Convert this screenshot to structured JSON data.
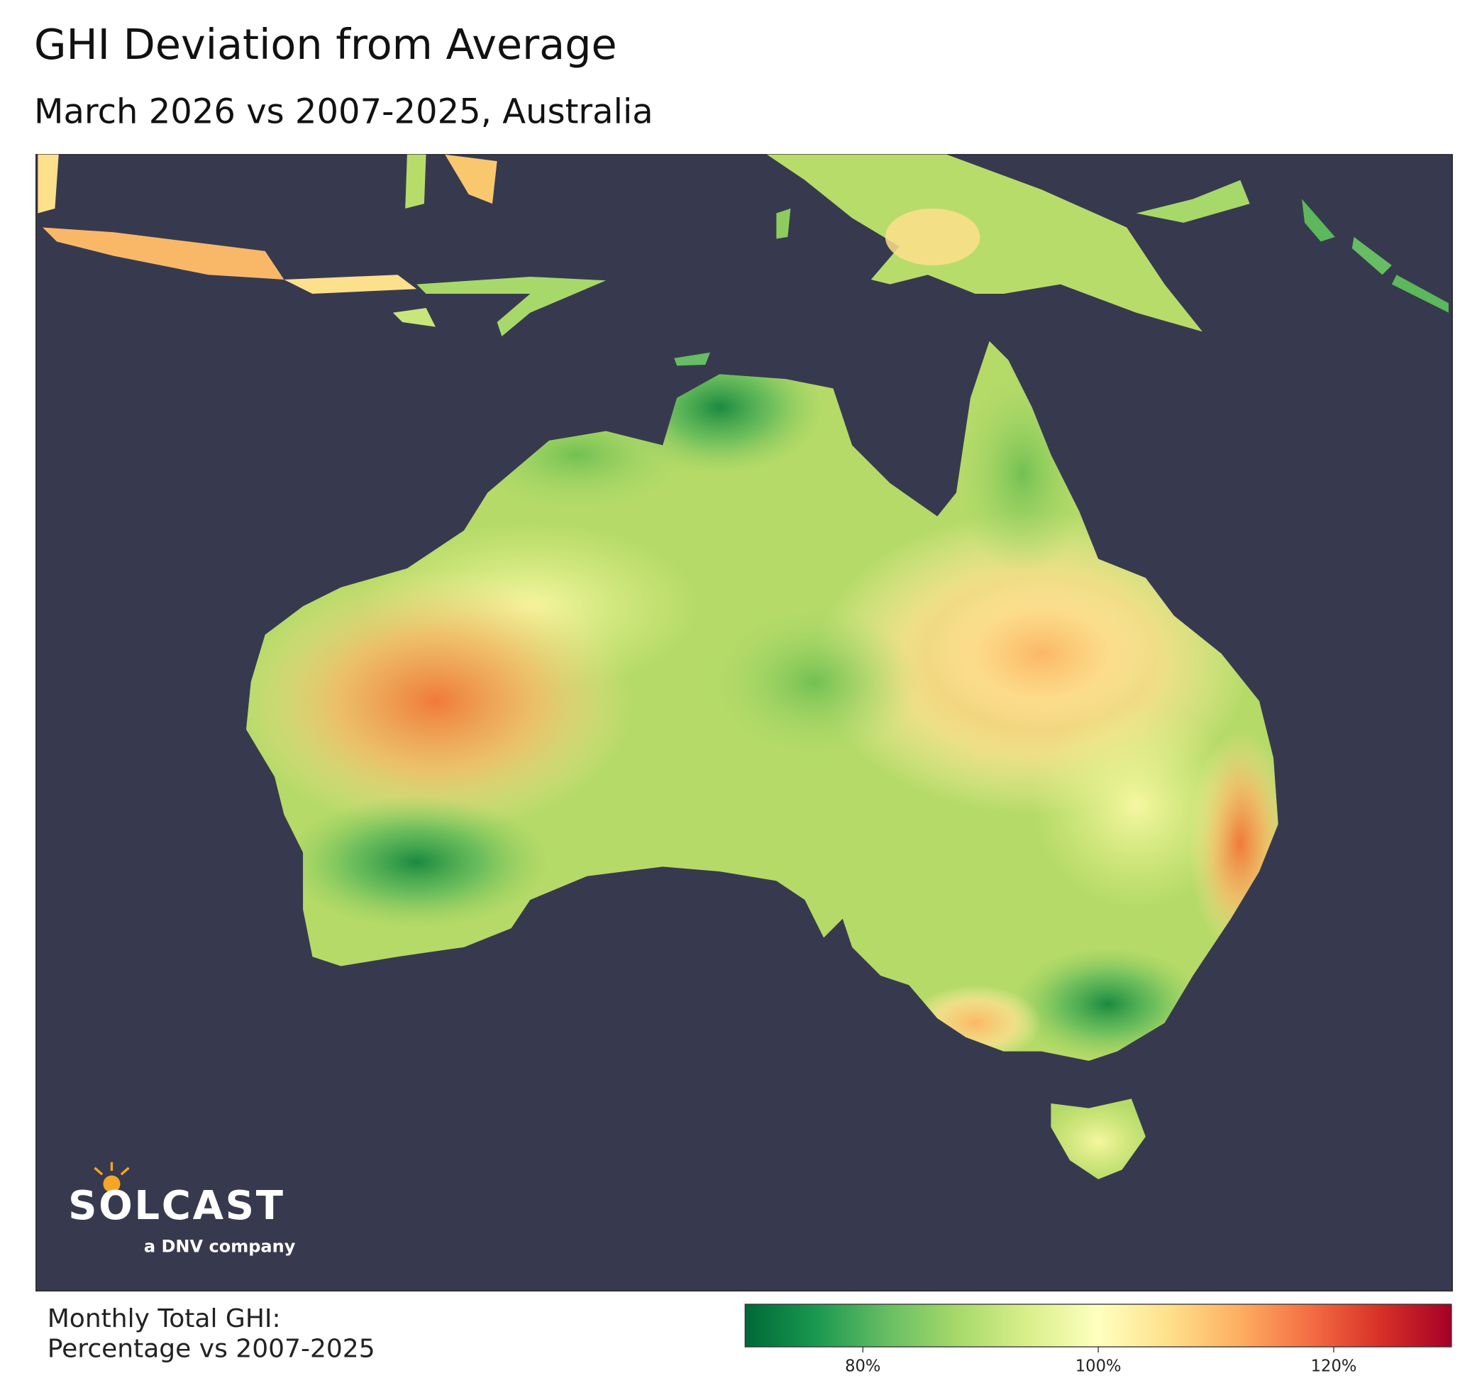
{
  "header": {
    "title": "GHI Deviation from Average",
    "subtitle": "March 2026 vs 2007-2025, Australia"
  },
  "legend": {
    "title": [
      "Monthly Total GHI:",
      "Percentage vs 2007-2025"
    ],
    "lim": [
      70,
      130
    ],
    "ticks": [
      {
        "value": 80,
        "label": "80%"
      },
      {
        "value": 100,
        "label": "100%"
      },
      {
        "value": 120,
        "label": "120%"
      }
    ]
  },
  "logo": {
    "name": "SOLCAST",
    "tagline": "a DNV company"
  }
}
